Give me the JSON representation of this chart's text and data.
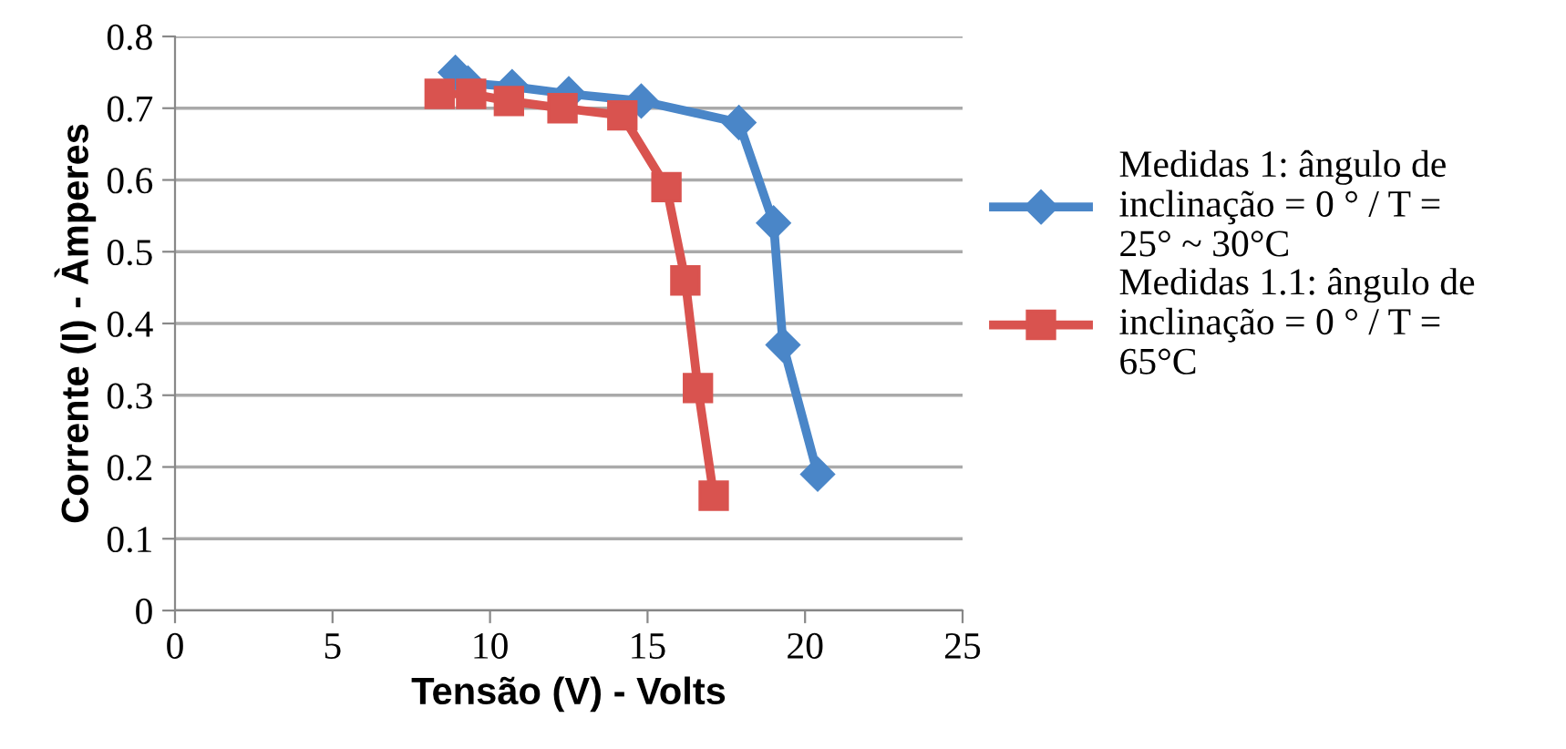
{
  "chart_data": {
    "type": "line",
    "xlabel": "Tensão (V) - Volts",
    "ylabel": "Corrente (I) - Àmperes",
    "xlim": [
      0,
      25
    ],
    "xticks": [
      0,
      5,
      10,
      15,
      20,
      25
    ],
    "ylim": [
      0,
      0.8
    ],
    "yticks": [
      0,
      0.1,
      0.2,
      0.3,
      0.4,
      0.5,
      0.6,
      0.7,
      0.8
    ],
    "grid": "y",
    "legend": "right",
    "line_style": "solid",
    "series": [
      {
        "name": "Medidas 1: ângulo de inclinação = 0 ° / T = 25° ~ 30°C",
        "color": "#4a86c8",
        "marker": "diamond",
        "x": [
          8.9,
          9.3,
          10.7,
          12.5,
          14.8,
          17.9,
          19.0,
          19.3,
          20.4
        ],
        "values": [
          0.75,
          0.735,
          0.73,
          0.72,
          0.71,
          0.68,
          0.54,
          0.37,
          0.19
        ]
      },
      {
        "name": "Medidas 1.1: ângulo de inclinação = 0 ° / T = 65°C",
        "color": "#d9534f",
        "marker": "square",
        "x": [
          8.4,
          9.4,
          10.6,
          12.3,
          14.2,
          15.6,
          16.2,
          16.6,
          17.1
        ],
        "values": [
          0.72,
          0.72,
          0.71,
          0.7,
          0.69,
          0.59,
          0.46,
          0.31,
          0.16
        ]
      }
    ]
  }
}
